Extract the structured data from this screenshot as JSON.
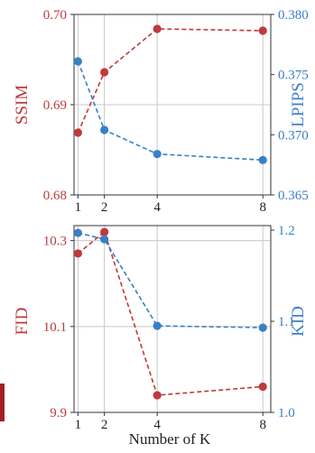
{
  "chart_data": [
    {
      "type": "line",
      "x": [
        1,
        2,
        4,
        8
      ],
      "xticks": [
        1,
        2,
        4,
        8
      ],
      "xlim": [
        0.85,
        8.3
      ],
      "left_axis": {
        "label": "SSIM",
        "ylim": [
          0.68,
          0.7
        ],
        "ticks": [
          "0.68",
          "0.69",
          "0.70"
        ],
        "color": "#c0393b",
        "values": [
          0.6869,
          0.6936,
          0.6984,
          0.6982
        ]
      },
      "right_axis": {
        "label": "LPIPS",
        "ylim": [
          0.365,
          0.38
        ],
        "ticks": [
          "0.365",
          "0.370",
          "0.375",
          "0.380"
        ],
        "color": "#3a7fc6",
        "values": [
          0.3761,
          0.3704,
          0.3684,
          0.3679
        ]
      },
      "grid": true
    },
    {
      "type": "line",
      "x": [
        1,
        2,
        4,
        8
      ],
      "xticks": [
        "1",
        "2",
        "4",
        "8"
      ],
      "xlim": [
        0.85,
        8.3
      ],
      "xlabel": "Number of K",
      "left_axis": {
        "label": "FID",
        "ylim": [
          9.9,
          10.335
        ],
        "ticks": [
          "9.9",
          "10.1",
          "10.3"
        ],
        "color": "#c0393b",
        "values": [
          10.27,
          10.32,
          9.94,
          9.96
        ]
      },
      "right_axis": {
        "label": "KID",
        "ylim": [
          1.0,
          1.205
        ],
        "ticks": [
          "1.0",
          "1.1",
          "1.2"
        ],
        "color": "#3a7fc6",
        "values": [
          1.197,
          1.19,
          1.095,
          1.093
        ]
      },
      "grid": true
    }
  ]
}
